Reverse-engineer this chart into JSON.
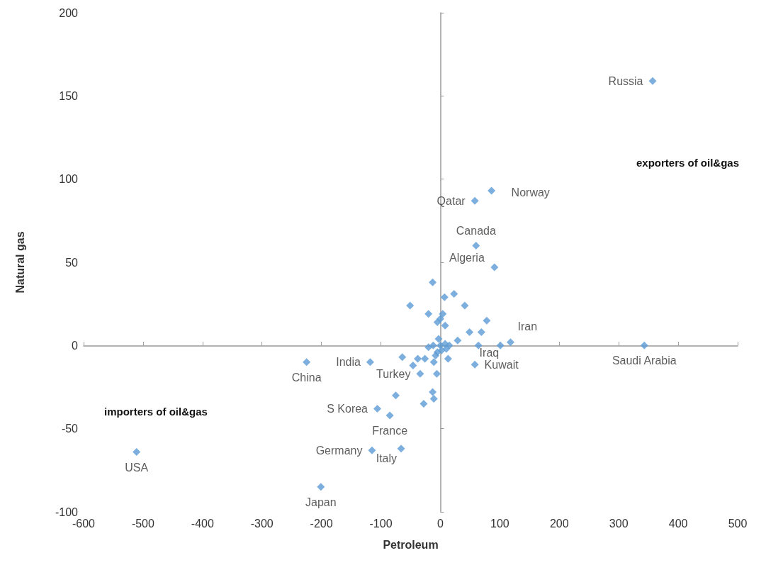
{
  "chart_data": {
    "type": "scatter",
    "xlabel": "Petroleum",
    "ylabel": "Natural gas",
    "annotations": [
      "exporters of oil&gas",
      "importers of oil&gas"
    ],
    "xlim": [
      -600,
      500
    ],
    "xticks": [
      -600,
      -500,
      -400,
      -300,
      -200,
      -100,
      0,
      100,
      200,
      300,
      400,
      500
    ],
    "ylim": [
      -100,
      200
    ],
    "yticks": [
      -100,
      -50,
      0,
      50,
      100,
      150,
      200
    ],
    "marker": "diamond",
    "series": [
      {
        "color": "#5b9bd5",
        "x": [
          357,
          58,
          86,
          60,
          91,
          118,
          101,
          58,
          343,
          -225,
          -118,
          -34,
          -106,
          -85,
          -115,
          -66,
          -201,
          -511,
          -13,
          23,
          7,
          -51,
          41,
          -20,
          4,
          0,
          -5,
          8,
          78,
          49,
          69,
          64,
          29,
          -20,
          -12,
          -5,
          15,
          -11,
          -26,
          -64,
          -38,
          -46,
          -6,
          13,
          -75,
          -13,
          -11,
          -28,
          0,
          2,
          -8,
          8,
          -3,
          10
        ],
        "values": [
          159,
          87,
          93,
          60,
          47,
          2,
          0,
          -11.5,
          0,
          -10,
          -10,
          -17,
          -38,
          -42,
          -63,
          -62,
          -85,
          -64,
          38,
          31,
          29,
          24,
          24,
          19,
          19,
          16,
          14,
          12,
          15,
          8,
          8,
          0,
          3,
          -1,
          0,
          -4,
          0,
          -10,
          -8,
          -7,
          -8,
          -12,
          -17,
          -8,
          -30,
          -28,
          -32,
          -35,
          0,
          -3,
          -6,
          1,
          4,
          -2
        ],
        "value_labels": [
          "Russia",
          "Qatar",
          "Norway",
          "Canada",
          "Algeria",
          "Iran",
          "Iraq",
          "Kuwait",
          "Saudi Arabia",
          "China",
          "India",
          "Turkey",
          "S Korea",
          "France",
          "Germany",
          "Italy",
          "Japan",
          "USA",
          null,
          null,
          null,
          null,
          null,
          null,
          null,
          null,
          null,
          null,
          null,
          null,
          null,
          null,
          null,
          null,
          null,
          null,
          null,
          null,
          null,
          null,
          null,
          null,
          null,
          null,
          null,
          null,
          null,
          null,
          null,
          null,
          null,
          null,
          null,
          null
        ]
      }
    ]
  }
}
